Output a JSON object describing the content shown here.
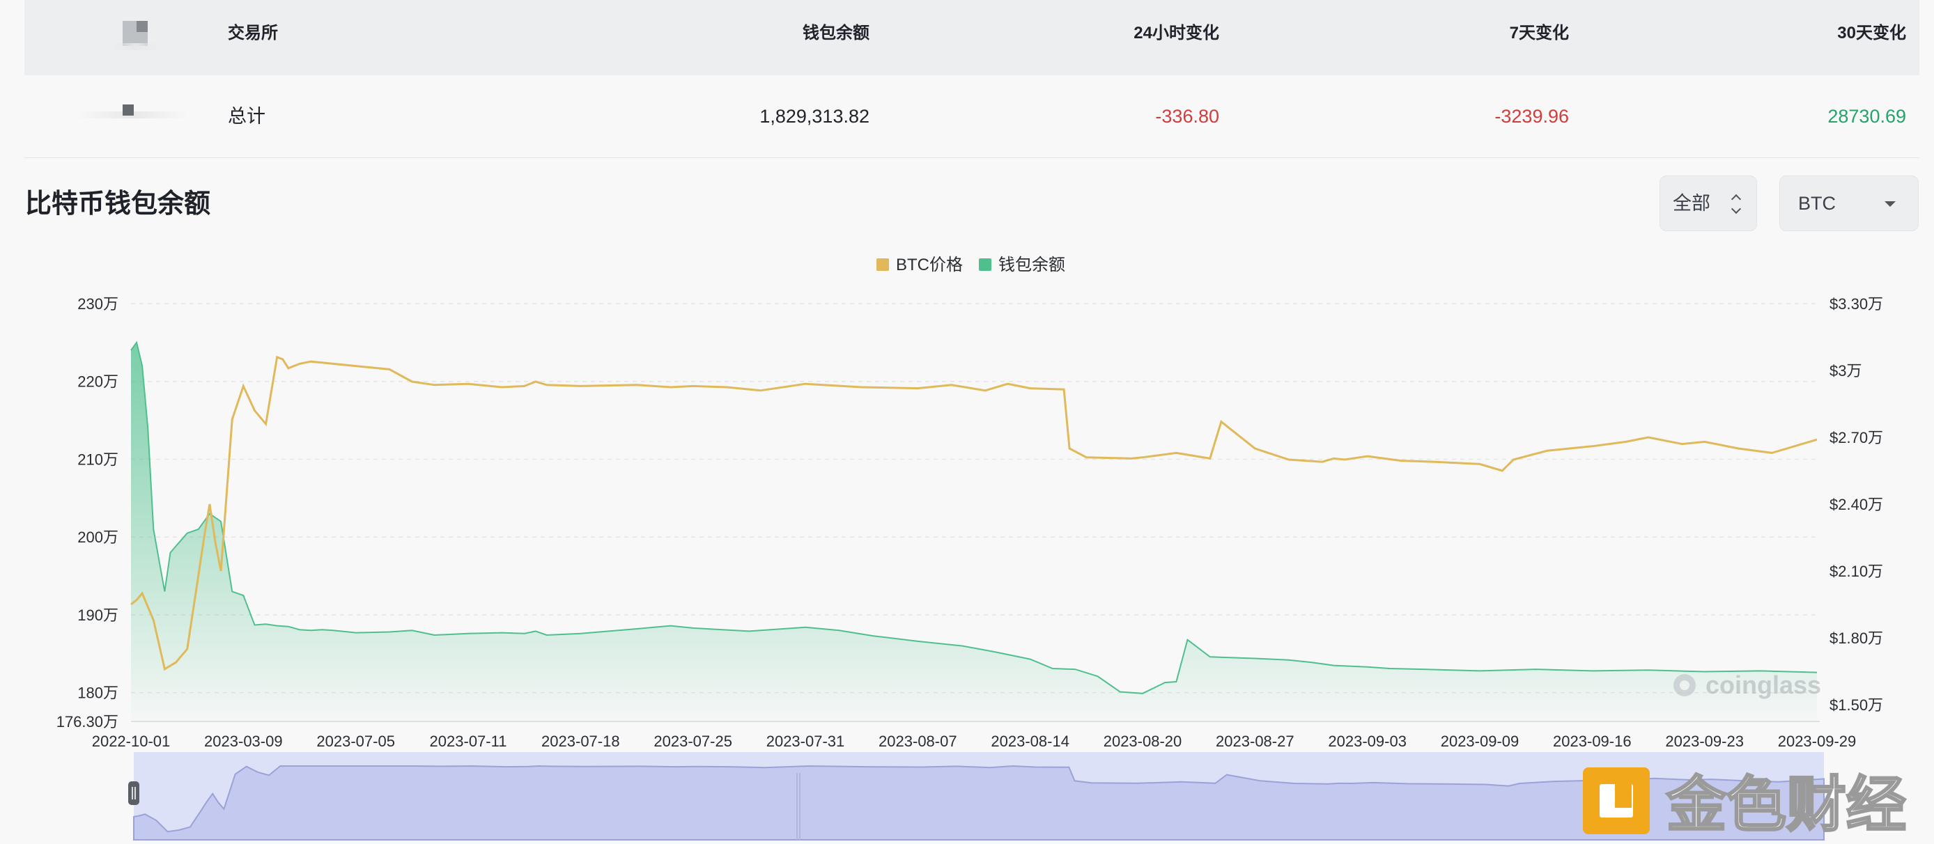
{
  "table": {
    "headers": {
      "exchange": "交易所",
      "balance": "钱包余额",
      "change_24h": "24小时变化",
      "change_7d": "7天变化",
      "change_30d": "30天变化"
    },
    "total_row": {
      "exchange": "总计",
      "balance": "1,829,313.82",
      "change_24h": "-336.80",
      "change_7d": "-3239.96",
      "change_30d": "28730.69"
    }
  },
  "section": {
    "title": "比特币钱包余额",
    "range_select": "全部",
    "coin_select": "BTC"
  },
  "watermark": {
    "coinglass": "coinglass",
    "jinse": "金色财经"
  },
  "colors": {
    "btc_price": "#e0b95a",
    "wallet_balance": "#4fc08d",
    "negative": "#d23c3c",
    "positive": "#25a36b",
    "navigator": "#dde1f7"
  },
  "chart_data": {
    "type": "line",
    "legend": {
      "position": "top-center",
      "items": [
        "BTC价格",
        "钱包余额"
      ]
    },
    "grid": true,
    "x_tick_labels": [
      "2022-10-01",
      "2023-03-09",
      "2023-07-05",
      "2023-07-11",
      "2023-07-18",
      "2023-07-25",
      "2023-07-31",
      "2023-08-07",
      "2023-08-14",
      "2023-08-20",
      "2023-08-27",
      "2023-09-03",
      "2023-09-09",
      "2023-09-16",
      "2023-09-23",
      "2023-09-29"
    ],
    "y_left": {
      "ticks": [
        230,
        220,
        210,
        200,
        190,
        180
      ],
      "tick_labels": [
        "230万",
        "220万",
        "210万",
        "200万",
        "190万",
        "180万"
      ],
      "min_label": "176.30万",
      "range": [
        176.3,
        230
      ]
    },
    "y_right": {
      "ticks": [
        33000,
        30000,
        27000,
        24000,
        21000,
        18000,
        15000
      ],
      "tick_labels": [
        "$3.30万",
        "$3万",
        "$2.70万",
        "$2.40万",
        "$2.10万",
        "$1.80万",
        "$1.50万"
      ],
      "range": [
        15000,
        33000
      ]
    },
    "series": [
      {
        "name": "BTC价格",
        "axis": "right",
        "x": [
          0,
          0.05,
          0.1,
          0.2,
          0.3,
          0.4,
          0.5,
          0.6,
          0.65,
          0.7,
          0.75,
          0.8,
          0.9,
          1.0,
          1.1,
          1.2,
          1.3,
          1.35,
          1.4,
          1.5,
          1.6,
          1.7,
          1.8,
          2.0,
          2.3,
          2.5,
          2.7,
          3.0,
          3.3,
          3.5,
          3.6,
          3.7,
          4.0,
          4.5,
          4.8,
          5.0,
          5.3,
          5.6,
          6.0,
          6.5,
          7.0,
          7.3,
          7.6,
          7.8,
          8.0,
          8.3,
          8.35,
          8.5,
          8.9,
          9.0,
          9.3,
          9.6,
          9.7,
          10.0,
          10.3,
          10.6,
          10.7,
          10.8,
          11.0,
          11.3,
          11.6,
          12.0,
          12.2,
          12.3,
          12.6,
          13.0,
          13.3,
          13.5,
          13.8,
          14.0,
          14.3,
          14.6,
          14.8,
          15.0
        ],
        "values": [
          19500,
          19700,
          20000,
          18800,
          16600,
          16900,
          17500,
          20800,
          22500,
          24000,
          22300,
          21000,
          27800,
          29300,
          28200,
          27600,
          30600,
          30500,
          30100,
          30300,
          30400,
          30350,
          30300,
          30200,
          30050,
          29500,
          29350,
          29400,
          29250,
          29300,
          29500,
          29350,
          29300,
          29350,
          29250,
          29300,
          29250,
          29100,
          29400,
          29250,
          29200,
          29350,
          29100,
          29400,
          29200,
          29150,
          26500,
          26100,
          26050,
          26100,
          26300,
          26050,
          27700,
          26500,
          26000,
          25900,
          26050,
          26000,
          26150,
          25950,
          25900,
          25800,
          25500,
          26000,
          26400,
          26600,
          26800,
          27000,
          26700,
          26800,
          26500,
          26300,
          26600,
          26900
        ]
      },
      {
        "name": "钱包余额",
        "axis": "left",
        "x": [
          0,
          0.05,
          0.1,
          0.15,
          0.2,
          0.25,
          0.3,
          0.35,
          0.5,
          0.6,
          0.7,
          0.8,
          0.9,
          1.0,
          1.1,
          1.2,
          1.3,
          1.4,
          1.5,
          1.6,
          1.7,
          1.8,
          2.0,
          2.3,
          2.5,
          2.7,
          3.0,
          3.3,
          3.5,
          3.6,
          3.7,
          4.0,
          4.5,
          4.8,
          5.0,
          5.5,
          6.0,
          6.3,
          6.6,
          7.0,
          7.4,
          7.7,
          8.0,
          8.2,
          8.4,
          8.6,
          8.8,
          9.0,
          9.2,
          9.3,
          9.4,
          9.6,
          10.0,
          10.3,
          10.5,
          10.7,
          11.0,
          11.2,
          11.5,
          12.0,
          12.5,
          13.0,
          13.5,
          14.0,
          14.5,
          15.0
        ],
        "values": [
          224,
          225,
          222,
          214,
          201,
          197,
          193,
          198,
          200.5,
          201,
          203,
          202,
          193,
          192.5,
          188.7,
          188.8,
          188.6,
          188.5,
          188.1,
          188.0,
          188.1,
          188.0,
          187.7,
          187.8,
          188.0,
          187.4,
          187.6,
          187.7,
          187.6,
          187.9,
          187.4,
          187.6,
          188.2,
          188.6,
          188.3,
          187.9,
          188.4,
          188.0,
          187.3,
          186.6,
          186.0,
          185.2,
          184.3,
          183.1,
          183.0,
          182.1,
          180.1,
          179.9,
          181.3,
          181.4,
          186.8,
          184.6,
          184.4,
          184.2,
          183.9,
          183.5,
          183.3,
          183.1,
          183.0,
          182.8,
          183.0,
          182.8,
          182.9,
          182.7,
          182.8,
          182.6
        ]
      }
    ]
  }
}
